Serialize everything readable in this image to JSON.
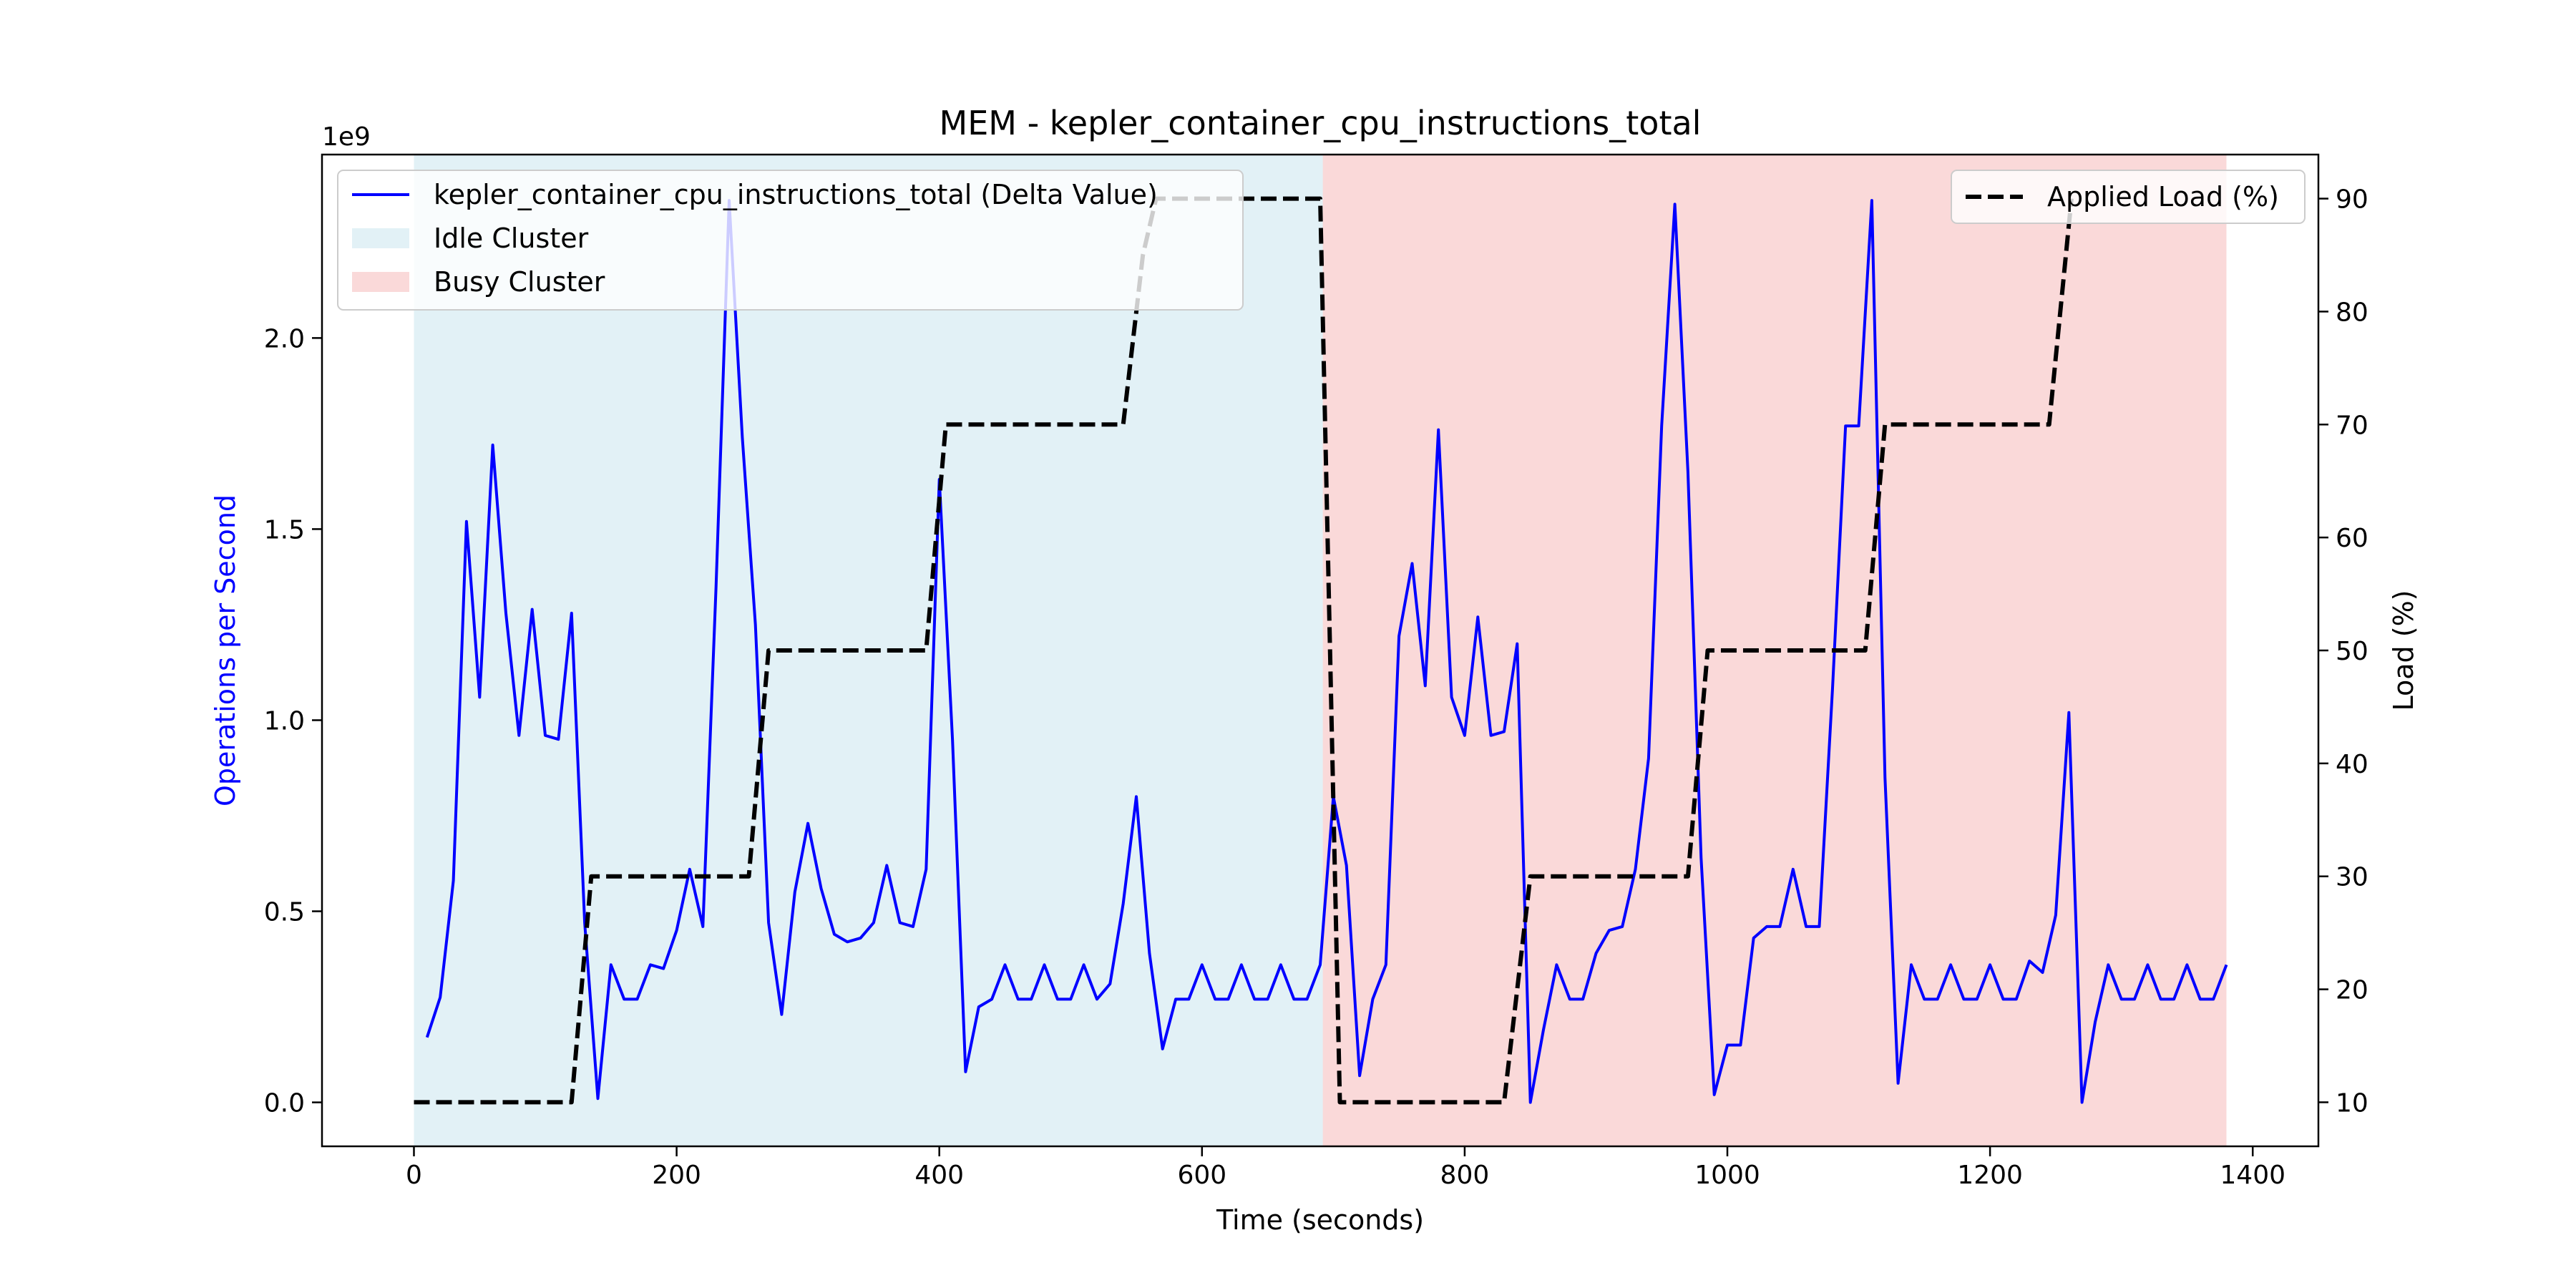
{
  "chart_data": {
    "type": "line",
    "title": "MEM - kepler_container_cpu_instructions_total",
    "xlabel": "Time (seconds)",
    "ylabel_left": "Operations per Second",
    "ylabel_right": "Load (%)",
    "left_axis_scale_label": "1e9",
    "xlim": [
      -70,
      1450
    ],
    "ylim_left": [
      -0.115,
      2.48
    ],
    "ylim_right": [
      6.1,
      93.9
    ],
    "x_ticks": [
      0,
      200,
      400,
      600,
      800,
      1000,
      1200,
      1400
    ],
    "y_ticks_left": [
      0.0,
      0.5,
      1.0,
      1.5,
      2.0
    ],
    "y_tick_labels_left": [
      "0.0",
      "0.5",
      "1.0",
      "1.5",
      "2.0"
    ],
    "y_ticks_right": [
      10,
      20,
      30,
      40,
      50,
      60,
      70,
      80,
      90
    ],
    "grid": false,
    "regions": [
      {
        "name": "Idle Cluster",
        "x_start": 0,
        "x_end": 692,
        "color": "#add8e6",
        "alpha": 0.35
      },
      {
        "name": "Busy Cluster",
        "x_start": 692,
        "x_end": 1380,
        "color": "#f08080",
        "alpha": 0.3
      }
    ],
    "series": [
      {
        "name": "kepler_container_cpu_instructions_total (Delta Value)",
        "axis": "left",
        "color": "#0000ff",
        "style": "solid",
        "x": [
          10,
          20,
          30,
          40,
          50,
          60,
          70,
          80,
          90,
          100,
          110,
          120,
          130,
          140,
          150,
          160,
          170,
          180,
          190,
          200,
          210,
          220,
          230,
          240,
          250,
          260,
          270,
          280,
          290,
          300,
          310,
          320,
          330,
          340,
          350,
          360,
          370,
          380,
          390,
          400,
          410,
          420,
          430,
          440,
          450,
          460,
          470,
          480,
          490,
          500,
          510,
          520,
          530,
          540,
          550,
          560,
          570,
          580,
          590,
          600,
          610,
          620,
          630,
          640,
          650,
          660,
          670,
          680,
          690,
          700,
          710,
          720,
          730,
          740,
          750,
          760,
          770,
          780,
          790,
          800,
          810,
          820,
          830,
          840,
          850,
          860,
          870,
          880,
          890,
          900,
          910,
          920,
          930,
          940,
          950,
          960,
          970,
          980,
          990,
          1000,
          1010,
          1020,
          1030,
          1040,
          1050,
          1060,
          1070,
          1080,
          1090,
          1100,
          1110,
          1120,
          1130,
          1140,
          1150,
          1160,
          1170,
          1180,
          1190,
          1200,
          1210,
          1220,
          1230,
          1240,
          1250,
          1260,
          1270,
          1280,
          1290,
          1300,
          1310,
          1320,
          1330,
          1340,
          1350,
          1360,
          1370,
          1380
        ],
        "values": [
          0.17,
          0.275,
          0.58,
          1.52,
          1.06,
          1.72,
          1.28,
          0.96,
          1.29,
          0.96,
          0.95,
          1.28,
          0.47,
          0.01,
          0.36,
          0.27,
          0.27,
          0.36,
          0.35,
          0.45,
          0.61,
          0.46,
          1.35,
          2.36,
          1.74,
          1.25,
          0.47,
          0.23,
          0.55,
          0.73,
          0.56,
          0.44,
          0.42,
          0.43,
          0.47,
          0.62,
          0.47,
          0.46,
          0.61,
          1.63,
          0.95,
          0.08,
          0.25,
          0.27,
          0.36,
          0.27,
          0.27,
          0.36,
          0.27,
          0.27,
          0.36,
          0.27,
          0.31,
          0.52,
          0.8,
          0.39,
          0.14,
          0.27,
          0.27,
          0.36,
          0.27,
          0.27,
          0.36,
          0.27,
          0.27,
          0.36,
          0.27,
          0.27,
          0.36,
          0.8,
          0.62,
          0.07,
          0.27,
          0.36,
          1.22,
          1.41,
          1.09,
          1.76,
          1.06,
          0.96,
          1.27,
          0.96,
          0.97,
          1.2,
          0.0,
          0.19,
          0.36,
          0.27,
          0.27,
          0.39,
          0.45,
          0.46,
          0.61,
          0.9,
          1.77,
          2.35,
          1.65,
          0.64,
          0.02,
          0.15,
          0.15,
          0.43,
          0.46,
          0.46,
          0.61,
          0.46,
          0.46,
          1.08,
          1.77,
          1.77,
          2.36,
          0.85,
          0.05,
          0.36,
          0.27,
          0.27,
          0.36,
          0.27,
          0.27,
          0.36,
          0.27,
          0.27,
          0.37,
          0.34,
          0.49,
          1.02,
          0.0,
          0.21,
          0.36,
          0.27,
          0.27,
          0.36,
          0.27,
          0.27,
          0.36,
          0.27,
          0.27,
          0.36
        ]
      },
      {
        "name": "Applied Load (%)",
        "axis": "right",
        "color": "#000000",
        "style": "dashed",
        "x": [
          0,
          120,
          135,
          255,
          270,
          390,
          405,
          525,
          540,
          555,
          565,
          570,
          685,
          690,
          705,
          715,
          720,
          830,
          850,
          970,
          985,
          1105,
          1120,
          1230,
          1245,
          1262
        ],
        "values": [
          10,
          10,
          30,
          30,
          50,
          50,
          70,
          70,
          70,
          85,
          90,
          90,
          90,
          90,
          10,
          10,
          10,
          10,
          30,
          30,
          50,
          50,
          70,
          70,
          70,
          90
        ]
      }
    ],
    "legend_left": {
      "placement": "upper-left",
      "entries": [
        {
          "label": "kepler_container_cpu_instructions_total (Delta Value)",
          "kind": "line",
          "color": "#0000ff"
        },
        {
          "label": "Idle Cluster",
          "kind": "patch",
          "color": "#add8e6"
        },
        {
          "label": "Busy Cluster",
          "kind": "patch",
          "color": "#f08080"
        }
      ]
    },
    "legend_right": {
      "placement": "upper-right",
      "entries": [
        {
          "label": "Applied Load (%)",
          "kind": "dashed-line",
          "color": "#000000"
        }
      ]
    },
    "colors": {
      "left_ylabel": "#0000ff"
    }
  }
}
